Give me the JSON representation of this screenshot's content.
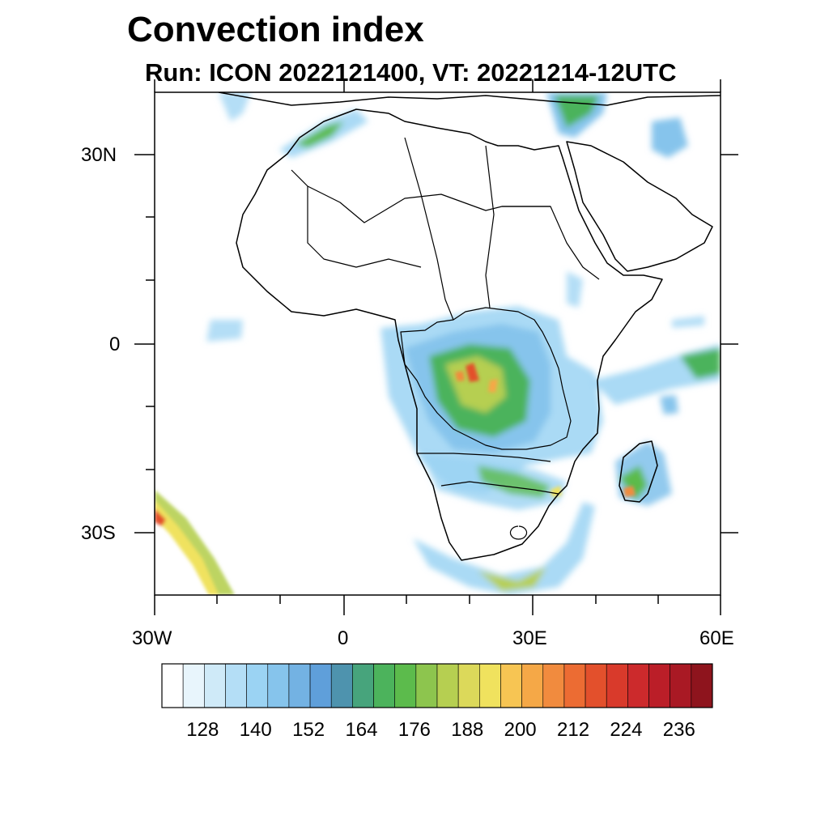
{
  "header": {
    "title": "Convection index",
    "subtitle": "Run: ICON 2022121400,  VT: 20221214-12UTC"
  },
  "map": {
    "region": "Africa",
    "lon_range": [
      -30,
      60
    ],
    "lat_range": [
      -40,
      40
    ],
    "lat_labels": [
      "30N",
      "0",
      "30S"
    ],
    "lon_labels": [
      "30W",
      "0",
      "30E",
      "60E"
    ]
  },
  "colorbar": {
    "tick_labels": [
      "128",
      "140",
      "152",
      "164",
      "176",
      "188",
      "200",
      "212",
      "224",
      "236"
    ],
    "colors": [
      "#ffffff",
      "#e8f5fc",
      "#cfeaf8",
      "#b4def6",
      "#9bd3f3",
      "#86c4ec",
      "#73b2e3",
      "#5f9fda",
      "#4e93ae",
      "#47a47c",
      "#4cb35c",
      "#5cbb4c",
      "#8dc54e",
      "#b6cf51",
      "#dcd95a",
      "#f0e25e",
      "#f7c553",
      "#f5a847",
      "#f18b3e",
      "#ec6c33",
      "#e3502c",
      "#d93a2b",
      "#cc2a2c",
      "#bb1e28",
      "#a91924",
      "#8e141d"
    ]
  }
}
